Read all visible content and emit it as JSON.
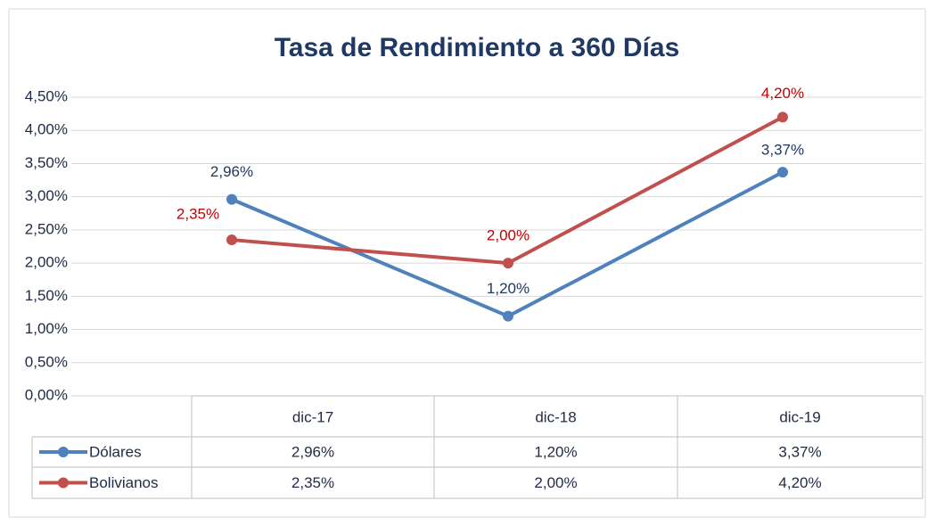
{
  "chart_data": {
    "type": "line",
    "title": "Tasa de Rendimiento a 360 Días",
    "categories": [
      "dic-17",
      "dic-18",
      "dic-19"
    ],
    "series": [
      {
        "name": "Dólares",
        "color": "#4f81bd",
        "label_color": "#1f3864",
        "values": [
          2.96,
          1.2,
          3.37
        ],
        "value_labels": [
          "2,96%",
          "1,20%",
          "3,37%"
        ]
      },
      {
        "name": "Bolivianos",
        "color": "#c0504d",
        "label_color": "#c00000",
        "values": [
          2.35,
          2.0,
          4.2
        ],
        "value_labels": [
          "2,35%",
          "2,00%",
          "4,20%"
        ]
      }
    ],
    "ylim": [
      0,
      4.5
    ],
    "yticks": [
      {
        "value": 0,
        "label": "0,00%"
      },
      {
        "value": 0.5,
        "label": "0,50%"
      },
      {
        "value": 1,
        "label": "1,00%"
      },
      {
        "value": 1.5,
        "label": "1,50%"
      },
      {
        "value": 2,
        "label": "2,00%"
      },
      {
        "value": 2.5,
        "label": "2,50%"
      },
      {
        "value": 3,
        "label": "3,00%"
      },
      {
        "value": 3.5,
        "label": "3,50%"
      },
      {
        "value": 4,
        "label": "4,00%"
      },
      {
        "value": 4.5,
        "label": "4,50%"
      }
    ],
    "grid": true
  }
}
